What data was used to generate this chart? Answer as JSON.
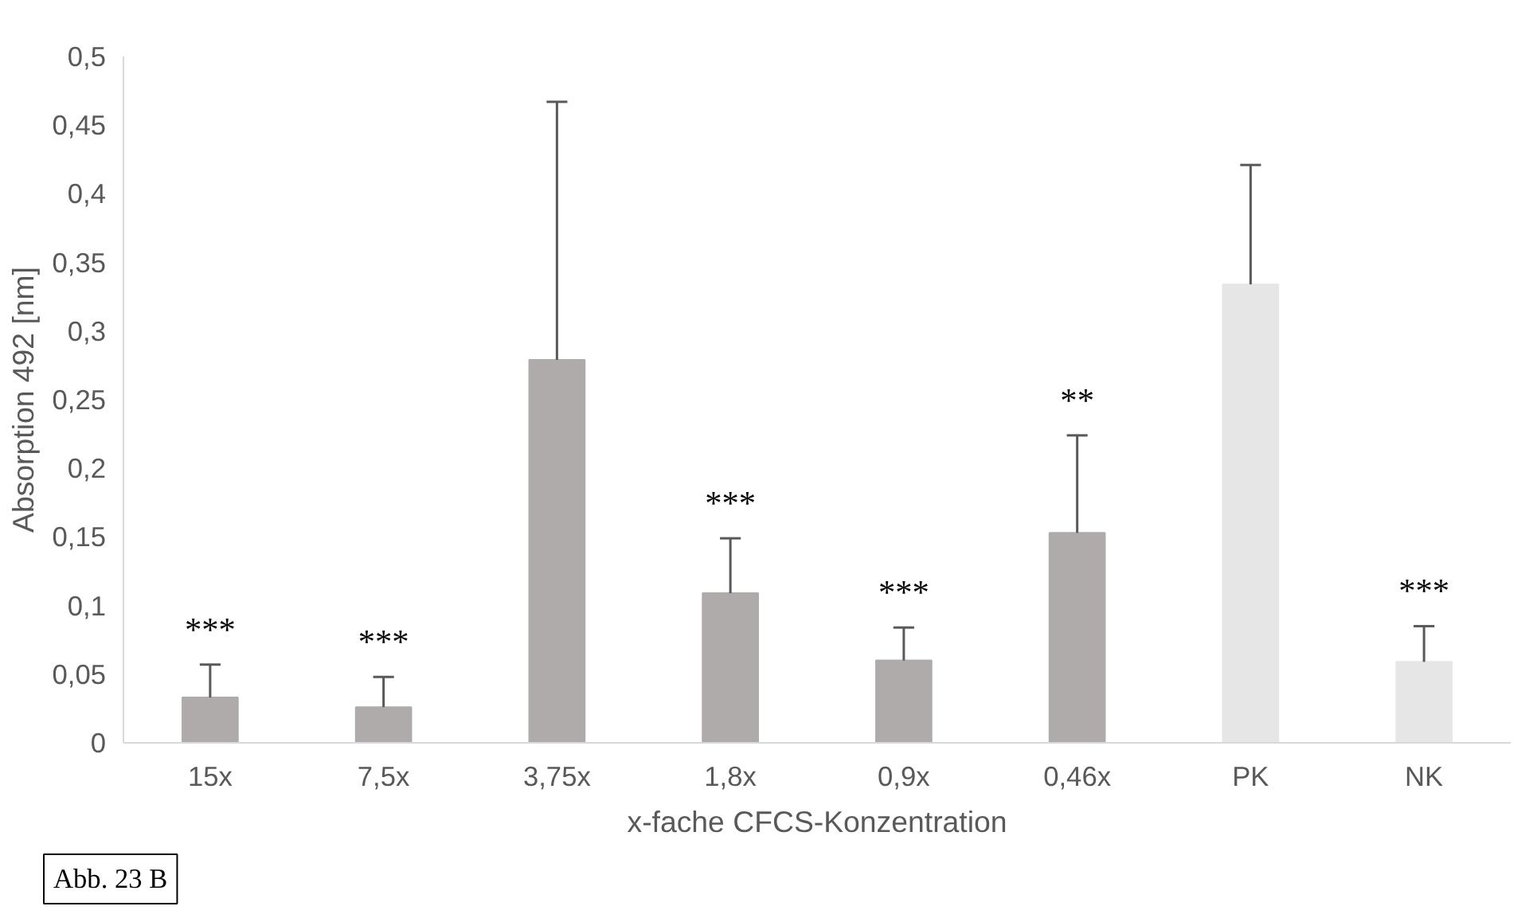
{
  "chart_data": {
    "type": "bar",
    "xlabel": "x-fache CFCS-Konzentration",
    "ylabel": "Absorption 492 [nm]",
    "categories": [
      "15x",
      "7,5x",
      "3,75x",
      "1,8x",
      "0,9x",
      "0,46x",
      "PK",
      "NK"
    ],
    "values": [
      0.033,
      0.026,
      0.279,
      0.109,
      0.06,
      0.153,
      0.334,
      0.059
    ],
    "errors": [
      [
        0.033,
        0.057
      ],
      [
        0.026,
        0.048
      ],
      [
        0.279,
        0.467
      ],
      [
        0.109,
        0.149
      ],
      [
        0.06,
        0.084
      ],
      [
        0.153,
        0.224
      ],
      [
        0.334,
        0.421
      ],
      [
        0.059,
        0.085
      ]
    ],
    "colors": [
      "#afabab",
      "#afabab",
      "#afabab",
      "#afabab",
      "#afabab",
      "#afabab",
      "#e7e6e6",
      "#e7e6e6"
    ],
    "ylim": [
      0,
      0.5
    ],
    "yticks": [
      0,
      {
        "value": 0.05,
        "label": "0,05"
      },
      {
        "value": 0.1,
        "label": "0,1"
      },
      {
        "value": 0.15,
        "label": "0,15"
      },
      {
        "value": 0.2,
        "label": "0,2"
      },
      {
        "value": 0.25,
        "label": "0,25"
      },
      {
        "value": 0.3,
        "label": "0,3"
      },
      {
        "value": 0.35,
        "label": "0,35"
      },
      {
        "value": 0.4,
        "label": "0,4"
      },
      {
        "value": 0.45,
        "label": "0,45"
      },
      {
        "value": 0.5,
        "label": "0,5"
      }
    ],
    "grid": false,
    "annotations": [
      "***",
      "***",
      "***",
      "***",
      "**",
      "***",
      "Abb. 23 B"
    ]
  }
}
